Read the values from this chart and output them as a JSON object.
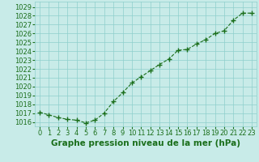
{
  "x": [
    0,
    1,
    2,
    3,
    4,
    5,
    6,
    7,
    8,
    9,
    10,
    11,
    12,
    13,
    14,
    15,
    16,
    17,
    18,
    19,
    20,
    21,
    22,
    23
  ],
  "y": [
    1017.1,
    1016.8,
    1016.5,
    1016.3,
    1016.2,
    1015.9,
    1016.2,
    1017.0,
    1018.3,
    1019.3,
    1020.4,
    1021.1,
    1021.8,
    1022.5,
    1023.1,
    1024.1,
    1024.2,
    1024.8,
    1025.3,
    1026.0,
    1026.3,
    1027.5,
    1028.3,
    1028.3
  ],
  "line_color": "#1a6e1a",
  "marker": "+",
  "marker_size": 4,
  "linewidth": 0.8,
  "bg_color": "#c8ebe8",
  "grid_color": "#8ecfcc",
  "xlabel": "Graphe pression niveau de la mer (hPa)",
  "xlabel_fontsize": 7.5,
  "xlabel_color": "#1a6e1a",
  "ylabel_ticks": [
    1016,
    1017,
    1018,
    1019,
    1020,
    1021,
    1022,
    1023,
    1024,
    1025,
    1026,
    1027,
    1028,
    1029
  ],
  "ylim": [
    1015.5,
    1029.6
  ],
  "xlim": [
    -0.5,
    23.5
  ],
  "tick_fontsize": 6,
  "tick_color": "#1a6e1a"
}
